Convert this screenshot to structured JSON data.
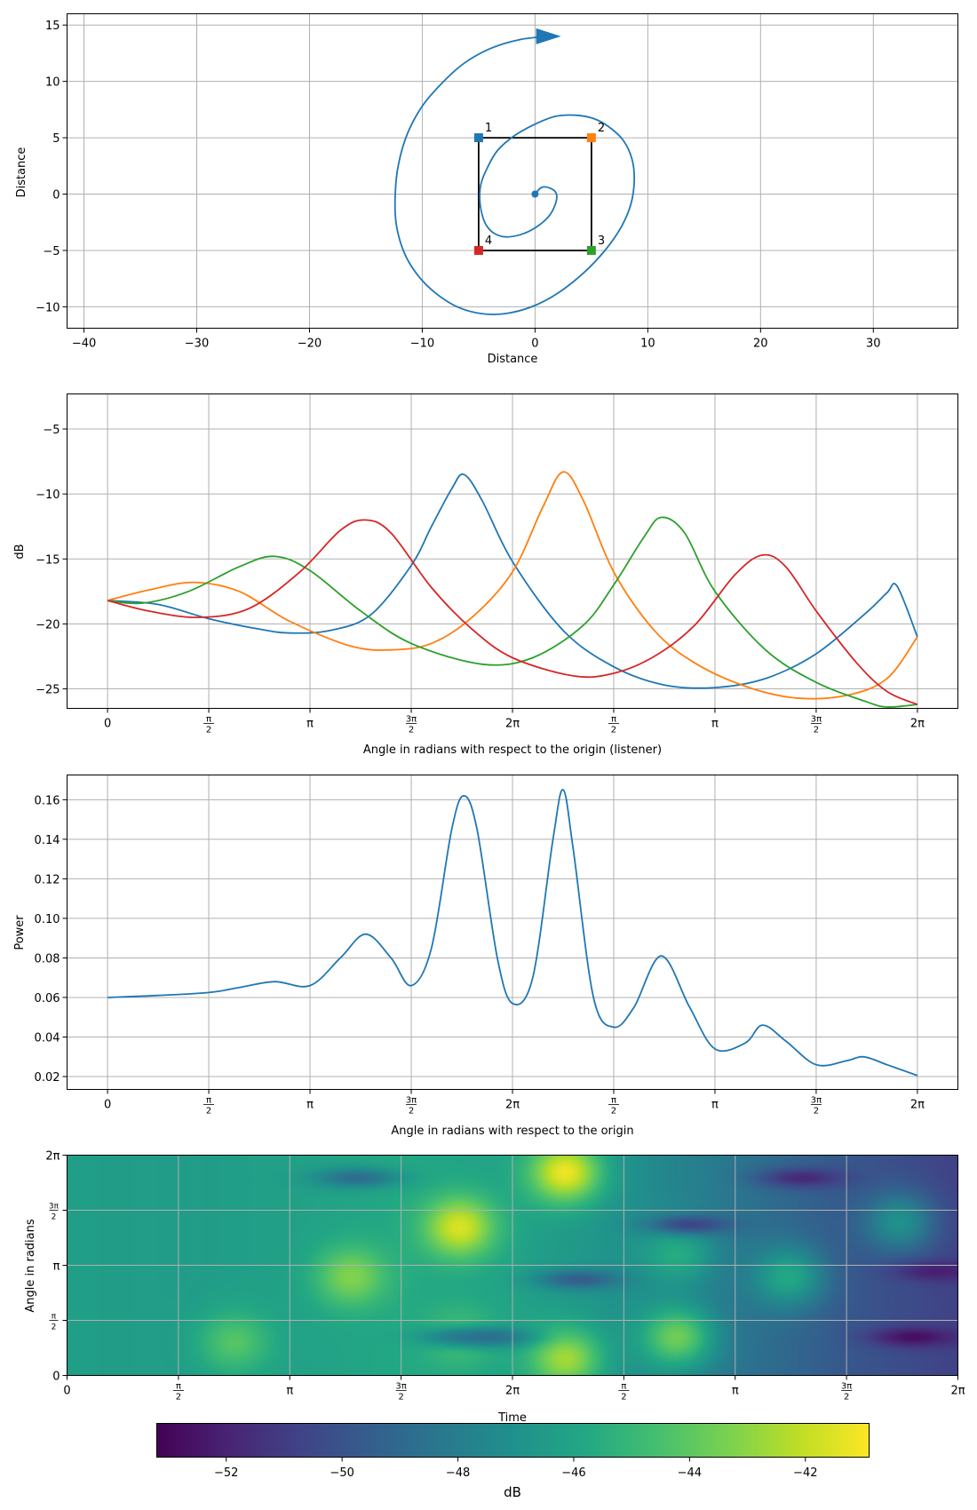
{
  "colors": {
    "blue": "#1f77b4",
    "orange": "#ff7f0e",
    "green": "#2ca02c",
    "red": "#d62728",
    "black": "#000000",
    "grid": "#b0b0b0"
  },
  "colorbar": {
    "label": "dB",
    "ticks": [
      "−52",
      "−50",
      "−48",
      "−46",
      "−44",
      "−42"
    ],
    "tick_values": [
      -52,
      -50,
      -48,
      -46,
      -44,
      -42
    ],
    "range": [
      -53.2,
      -40.9
    ],
    "colormap": "viridis"
  },
  "chart_data": [
    {
      "type": "scatter",
      "xlabel": "Distance",
      "ylabel": "Distance",
      "xlim": [
        -41.5,
        37.5
      ],
      "ylim": [
        -11.9,
        16
      ],
      "xticks": [
        -40,
        -30,
        -20,
        -10,
        0,
        10,
        20,
        30
      ],
      "xtick_labels": [
        "−40",
        "−30",
        "−20",
        "−10",
        "0",
        "10",
        "20",
        "30"
      ],
      "yticks": [
        -10,
        -5,
        0,
        5,
        10,
        15
      ],
      "ytick_labels": [
        "−10",
        "−5",
        "0",
        "5",
        "10",
        "15"
      ],
      "grid": true,
      "speakers": [
        {
          "label": "1",
          "x": -5,
          "y": 5,
          "color": "#1f77b4"
        },
        {
          "label": "2",
          "x": 5,
          "y": 5,
          "color": "#ff7f0e"
        },
        {
          "label": "3",
          "x": 5,
          "y": -5,
          "color": "#2ca02c"
        },
        {
          "label": "4",
          "x": -5,
          "y": -5,
          "color": "#d62728"
        }
      ],
      "square": [
        [
          -5,
          5
        ],
        [
          5,
          5
        ],
        [
          5,
          -5
        ],
        [
          -5,
          -5
        ]
      ],
      "origin": [
        0,
        0
      ],
      "spiral": {
        "x": [
          0,
          0.6,
          1.4,
          1.9,
          1.8,
          1.2,
          0,
          -1.3,
          -2.6,
          -3.6,
          -4.3,
          -4.7,
          -4.9,
          -4.8,
          -4.2,
          -3.3,
          -1.8,
          0,
          1.8,
          3.6,
          5.2,
          6.5,
          7.8,
          8.6,
          8.8,
          8.5,
          7.6,
          6.2,
          4.3,
          2.0,
          -0.3,
          -2.6,
          -4.8,
          -6.9,
          -8.8,
          -10.4,
          -11.6,
          -12.3,
          -12.4,
          -12.1,
          -11.3,
          -10.0,
          -8.3,
          -6.3,
          -4.0,
          -1.4,
          1.2
        ],
        "y": [
          0,
          0.6,
          0.5,
          0,
          -0.9,
          -2.0,
          -3.0,
          -3.6,
          -3.8,
          -3.5,
          -2.8,
          -1.8,
          -0.5,
          0.9,
          2.4,
          3.9,
          5.2,
          6.2,
          6.9,
          7.0,
          6.7,
          6.0,
          4.8,
          3.1,
          1.2,
          -0.9,
          -3.0,
          -5.0,
          -7.0,
          -8.8,
          -10.0,
          -10.6,
          -10.6,
          -10.0,
          -8.8,
          -7.2,
          -5.2,
          -2.7,
          0,
          2.7,
          5.4,
          7.8,
          9.8,
          11.6,
          12.9,
          13.7,
          14.0
        ]
      },
      "arrow_tip": [
        2.3,
        14.0
      ]
    },
    {
      "type": "line",
      "xlabel": "",
      "ylabel": "dB",
      "ylim": [
        -26.5,
        -2.3
      ],
      "yticks": [
        -25,
        -20,
        -15,
        -10,
        -5
      ],
      "ytick_labels": [
        "−25",
        "−20",
        "−15",
        "−10",
        "−5"
      ],
      "xticks": [
        0,
        1,
        2,
        3,
        4,
        5,
        6,
        7,
        8
      ],
      "xtick_labels": [
        "0",
        "π/2",
        "π",
        "3π/2",
        "2π",
        "π/2",
        "π",
        "3π/2",
        "2π"
      ],
      "xlim": [
        -0.4,
        8.4
      ],
      "grid": true,
      "xtitle": "Angle in radians with respect to the origin (listener)",
      "series": [
        {
          "color": "#1f77b4",
          "x": [
            0,
            0.5,
            1.0,
            1.5,
            1.8,
            2.2,
            2.6,
            3.0,
            3.2,
            3.4,
            3.52,
            3.7,
            4.0,
            4.5,
            5.0,
            5.5,
            6.0,
            6.5,
            7.0,
            7.5,
            7.7,
            7.8,
            8.0
          ],
          "y": [
            -18.2,
            -18.5,
            -19.6,
            -20.4,
            -20.7,
            -20.5,
            -19.3,
            -15.5,
            -12.5,
            -9.6,
            -8.5,
            -10.5,
            -15.2,
            -20.5,
            -23.3,
            -24.7,
            -24.9,
            -24.2,
            -22.3,
            -19.1,
            -17.6,
            -17.1,
            -21.0
          ]
        },
        {
          "color": "#ff7f0e",
          "x": [
            0,
            0.4,
            0.85,
            1.3,
            1.8,
            2.4,
            2.8,
            3.2,
            3.6,
            4.0,
            4.3,
            4.5,
            4.7,
            5.0,
            5.4,
            5.8,
            6.3,
            6.8,
            7.3,
            7.7,
            8.0
          ],
          "y": [
            -18.2,
            -17.4,
            -16.8,
            -17.5,
            -19.8,
            -21.7,
            -22.0,
            -21.5,
            -19.5,
            -16.0,
            -11.0,
            -8.3,
            -10.5,
            -16.0,
            -20.5,
            -23.0,
            -24.8,
            -25.7,
            -25.5,
            -24.2,
            -21.0
          ]
        },
        {
          "color": "#2ca02c",
          "x": [
            0,
            0.35,
            0.8,
            1.3,
            1.65,
            2.0,
            2.5,
            3.0,
            3.7,
            4.2,
            4.7,
            5.0,
            5.3,
            5.47,
            5.7,
            6.0,
            6.5,
            7.0,
            7.5,
            7.7,
            8.0
          ],
          "y": [
            -18.2,
            -18.4,
            -17.5,
            -15.6,
            -14.8,
            -15.9,
            -19.0,
            -21.5,
            -23.1,
            -22.6,
            -20.1,
            -17.0,
            -13.3,
            -11.8,
            -13.0,
            -17.5,
            -22.0,
            -24.5,
            -26.0,
            -26.4,
            -26.2
          ]
        },
        {
          "color": "#d62728",
          "x": [
            0,
            0.4,
            0.9,
            1.4,
            1.9,
            2.3,
            2.55,
            2.8,
            3.2,
            3.6,
            4.0,
            4.6,
            5.0,
            5.4,
            5.8,
            6.2,
            6.47,
            6.7,
            7.0,
            7.4,
            7.7,
            8.0
          ],
          "y": [
            -18.2,
            -19.0,
            -19.5,
            -18.8,
            -16.0,
            -12.8,
            -12.0,
            -13.0,
            -17.2,
            -20.4,
            -22.6,
            -24.0,
            -23.8,
            -22.5,
            -20.1,
            -16.2,
            -14.7,
            -15.6,
            -19.0,
            -23.0,
            -25.2,
            -26.2
          ]
        }
      ]
    },
    {
      "type": "line",
      "xlabel": "Angle in radians with respect to the origin",
      "ylabel": "Power",
      "ylim": [
        0.0135,
        0.1725
      ],
      "yticks": [
        0.02,
        0.04,
        0.06,
        0.08,
        0.1,
        0.12,
        0.14,
        0.16
      ],
      "ytick_labels": [
        "0.02",
        "0.04",
        "0.06",
        "0.08",
        "0.10",
        "0.12",
        "0.14",
        "0.16"
      ],
      "xticks": [
        0,
        1,
        2,
        3,
        4,
        5,
        6,
        7,
        8
      ],
      "xtick_labels": [
        "0",
        "π/2",
        "π",
        "3π/2",
        "2π",
        "π/2",
        "π",
        "3π/2",
        "2π"
      ],
      "xlim": [
        -0.4,
        8.4
      ],
      "grid": true,
      "series": [
        {
          "color": "#1f77b4",
          "x": [
            0,
            0.5,
            1.0,
            1.3,
            1.65,
            2.0,
            2.3,
            2.55,
            2.8,
            3.0,
            3.2,
            3.4,
            3.52,
            3.65,
            3.85,
            4.0,
            4.2,
            4.4,
            4.5,
            4.6,
            4.8,
            5.0,
            5.2,
            5.47,
            5.75,
            6.0,
            6.3,
            6.47,
            6.7,
            7.0,
            7.3,
            7.47,
            7.7,
            8.0
          ],
          "y": [
            0.06,
            0.061,
            0.0625,
            0.065,
            0.068,
            0.066,
            0.08,
            0.092,
            0.08,
            0.066,
            0.085,
            0.145,
            0.162,
            0.145,
            0.08,
            0.057,
            0.07,
            0.14,
            0.165,
            0.135,
            0.06,
            0.045,
            0.055,
            0.081,
            0.055,
            0.034,
            0.037,
            0.046,
            0.038,
            0.026,
            0.028,
            0.03,
            0.026,
            0.0205
          ]
        }
      ]
    },
    {
      "type": "heatmap",
      "xlabel": "Time",
      "ylabel": "Angle in radians",
      "xlim": [
        0,
        8
      ],
      "ylim": [
        0,
        4
      ],
      "xticks": [
        0,
        1,
        2,
        3,
        4,
        5,
        6,
        7,
        8
      ],
      "xtick_labels": [
        "0",
        "π/2",
        "π",
        "3π/2",
        "2π",
        "π/2",
        "π",
        "3π/2",
        "2π"
      ],
      "yticks": [
        0,
        1,
        2,
        3,
        4
      ],
      "ytick_labels": [
        "0",
        "π/2",
        "π",
        "3π/2",
        "2π"
      ],
      "grid": true,
      "base_level_db": [
        -46.3,
        -46.4,
        -46.2,
        -45.8,
        -46.1,
        -47.0,
        -48.4,
        -49.8,
        -50.8
      ],
      "hot_spots_db": [
        {
          "x": 1.5,
          "y": 0.6,
          "peak": -44.2
        },
        {
          "x": 2.55,
          "y": 1.8,
          "peak": -43.2
        },
        {
          "x": 3.52,
          "y": 2.7,
          "peak": -41.6
        },
        {
          "x": 3.52,
          "y": 0.7,
          "peak": -44.5
        },
        {
          "x": 4.47,
          "y": 3.7,
          "peak": -41.2
        },
        {
          "x": 4.47,
          "y": 0.3,
          "peak": -42.6
        },
        {
          "x": 5.47,
          "y": 0.7,
          "peak": -43.6
        },
        {
          "x": 5.47,
          "y": 2.2,
          "peak": -45.6
        },
        {
          "x": 6.47,
          "y": 1.8,
          "peak": -45.8
        },
        {
          "x": 7.47,
          "y": 2.8,
          "peak": -47.0
        }
      ],
      "cold_spots_db": [
        {
          "x": 2.6,
          "y": 3.6,
          "depth": -49.3
        },
        {
          "x": 3.5,
          "y": 0.7,
          "depth": -48.0
        },
        {
          "x": 3.8,
          "y": 0.7,
          "depth": -49.0
        },
        {
          "x": 4.6,
          "y": 1.75,
          "depth": -50.0
        },
        {
          "x": 5.6,
          "y": 2.75,
          "depth": -51.2
        },
        {
          "x": 6.6,
          "y": 3.6,
          "depth": -52.2
        },
        {
          "x": 7.6,
          "y": 0.7,
          "depth": -53.1
        },
        {
          "x": 7.8,
          "y": 1.9,
          "depth": -52.4
        }
      ]
    }
  ]
}
